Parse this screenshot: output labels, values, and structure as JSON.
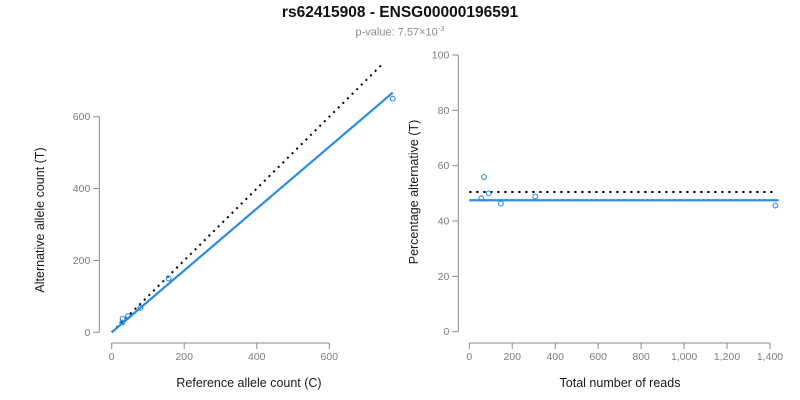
{
  "header": {
    "title": "rs62415908 - ENSG00000196591",
    "subtitle_prefix": "p-value: ",
    "subtitle_value": "7.57×10",
    "subtitle_exponent": "-3"
  },
  "colors": {
    "accent": "#2b8ce4",
    "dotted_line": "#000000",
    "axis": "#8a8a8a",
    "tick_text": "#7d7d7d",
    "axis_title_text": "#1a1a1a"
  },
  "chart_data": [
    {
      "type": "scatter",
      "name": "allele-counts-panel",
      "xlabel": "Reference allele count (C)",
      "ylabel": "Alternative allele count (T)",
      "xlim": [
        0,
        780
      ],
      "ylim": [
        0,
        760
      ],
      "grid": false,
      "xticks": [
        0,
        200,
        400,
        600
      ],
      "xtick_labels": [
        "0",
        "200",
        "400",
        "600"
      ],
      "yticks": [
        0,
        200,
        400,
        600
      ],
      "ytick_labels": [
        "0",
        "200",
        "400",
        "600"
      ],
      "points": [
        [
          29,
          27
        ],
        [
          30,
          38
        ],
        [
          45,
          45
        ],
        [
          79,
          68
        ],
        [
          157,
          150
        ],
        [
          775,
          650
        ]
      ],
      "lines": [
        {
          "name": "identity-line",
          "style": "dotted",
          "color": "dotted_line",
          "x1": 0,
          "y1": 0,
          "x2": 750,
          "y2": 750
        },
        {
          "name": "fit-line",
          "style": "solid",
          "color": "accent",
          "x1": 0,
          "y1": 0,
          "x2": 775,
          "y2": 667
        }
      ]
    },
    {
      "type": "scatter",
      "name": "percentage-vs-reads-panel",
      "xlabel": "Total number of reads",
      "ylabel": "Percentage alternative (T)",
      "xlim": [
        0,
        1440
      ],
      "ylim": [
        0,
        100
      ],
      "grid": false,
      "xticks": [
        0,
        200,
        400,
        600,
        800,
        1000,
        1200,
        1400
      ],
      "xtick_labels": [
        "0",
        "200",
        "400",
        "600",
        "800",
        "1,000",
        "1,200",
        "1,400"
      ],
      "yticks": [
        0,
        20,
        40,
        60,
        80,
        100
      ],
      "ytick_labels": [
        "0",
        "20",
        "40",
        "60",
        "80",
        "100"
      ],
      "points": [
        [
          56,
          48.2
        ],
        [
          68,
          55.9
        ],
        [
          90,
          50.0
        ],
        [
          147,
          46.3
        ],
        [
          307,
          48.9
        ],
        [
          1425,
          45.6
        ]
      ],
      "lines": [
        {
          "name": "null-50pct-line",
          "style": "dotted",
          "color": "dotted_line",
          "x1": 0,
          "y1": 50.5,
          "x2": 1430,
          "y2": 50.5
        },
        {
          "name": "fit-line",
          "style": "solid",
          "color": "accent",
          "x1": 0,
          "y1": 47.5,
          "x2": 1440,
          "y2": 47.5
        }
      ]
    }
  ]
}
